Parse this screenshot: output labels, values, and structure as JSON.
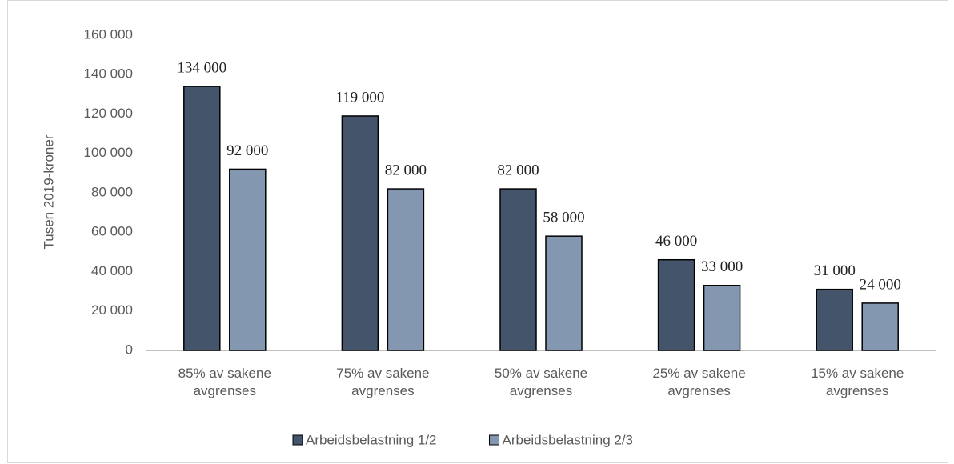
{
  "chart_data": {
    "type": "bar",
    "y_label": "Tusen 2019-kroner",
    "categories": [
      "85% av sakene avgrenses",
      "75% av sakene avgrenses",
      "50% av sakene avgrenses",
      "25% av sakene avgrenses",
      "15% av sakene avgrenses"
    ],
    "series": [
      {
        "name": "Arbeidsbelastning 1/2",
        "color": "#44546a",
        "values": [
          134000,
          119000,
          82000,
          46000,
          31000
        ],
        "value_labels": [
          "134 000",
          "119 000",
          "82 000",
          "46 000",
          "31 000"
        ]
      },
      {
        "name": "Arbeidsbelastning 2/3",
        "color": "#8497b0",
        "values": [
          92000,
          82000,
          58000,
          33000,
          24000
        ],
        "value_labels": [
          "92 000",
          "82 000",
          "58 000",
          "33 000",
          "24 000"
        ]
      }
    ],
    "ylim": [
      0,
      160000
    ],
    "yticks": [
      0,
      {
        "value": 20000,
        "label": "20 000"
      },
      {
        "value": 40000,
        "label": "40 000"
      },
      {
        "value": 60000,
        "label": "60 000"
      },
      {
        "value": 80000,
        "label": "80 000"
      },
      {
        "value": 100000,
        "label": "100 000"
      },
      {
        "value": 120000,
        "label": "120 000"
      },
      {
        "value": 140000,
        "label": "140 000"
      },
      {
        "value": 160000,
        "label": "160 000"
      }
    ],
    "grid": false,
    "legend": "bottom"
  }
}
